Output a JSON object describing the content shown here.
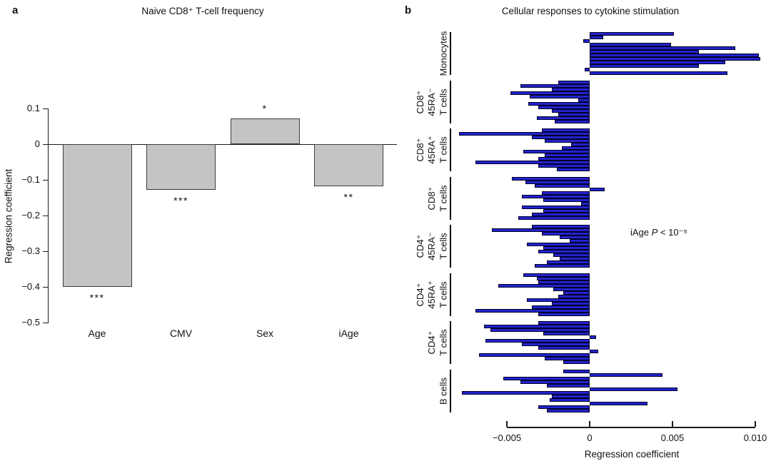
{
  "figure": {
    "panel_a_label": "a",
    "panel_b_label": "b"
  },
  "chart_data": [
    {
      "id": "panel_a",
      "type": "bar",
      "title": "Naive CD8⁺ T-cell frequency",
      "ylabel": "Regression coefficient",
      "categories": [
        "Age",
        "CMV",
        "Sex",
        "iAge"
      ],
      "values": [
        -0.4,
        -0.128,
        0.072,
        -0.118
      ],
      "significance": [
        "***",
        "***",
        "*",
        "**"
      ],
      "ylim": [
        -0.5,
        0.1
      ],
      "yticks": [
        0.1,
        0,
        -0.1,
        -0.2,
        -0.3,
        -0.4,
        -0.5
      ],
      "ytick_labels": [
        "0.1",
        "0",
        "−0.1",
        "−0.2",
        "−0.3",
        "−0.4",
        "−0.5"
      ],
      "grid": "off",
      "bar_color": "#c4c4c4",
      "bar_border": "#3d3d3d"
    },
    {
      "id": "panel_b",
      "type": "bar-horizontal",
      "title": "Cellular responses to cytokine stimulation",
      "xlabel": "Regression coefficient",
      "xlim": [
        -0.008,
        0.0105
      ],
      "xticks": [
        -0.005,
        0,
        0.005,
        0.01
      ],
      "xtick_labels": [
        "−0.005",
        "0",
        "0.005",
        "0.010"
      ],
      "grid": "off",
      "bar_color": "#2323cc",
      "bar_border": "#000028",
      "annotation": {
        "prefix": "iAge ",
        "p": "P",
        "suffix": " < 10⁻⁵"
      },
      "groups": [
        {
          "label_lines": [
            "Monocytes"
          ],
          "values": [
            0.0051,
            0.0008,
            -0.0004,
            0.0049,
            0.0088,
            0.0066,
            0.0102,
            0.0103,
            0.0082,
            0.0066,
            -0.0003,
            0.0083
          ]
        },
        {
          "label_lines": [
            "CD8⁺",
            "45RA⁻",
            "T cells"
          ],
          "values": [
            -0.0019,
            -0.0042,
            -0.0023,
            -0.0048,
            -0.0036,
            -0.0007,
            -0.0037,
            -0.0031,
            -0.0023,
            -0.0019,
            -0.0032,
            -0.0021
          ]
        },
        {
          "label_lines": [
            "CD8⁺",
            "45RA⁺",
            "T cells"
          ],
          "values": [
            -0.0029,
            -0.0079,
            -0.0035,
            -0.0027,
            -0.0011,
            -0.0017,
            -0.004,
            -0.0027,
            -0.0031,
            -0.0069,
            -0.0031,
            -0.002
          ]
        },
        {
          "label_lines": [
            "CD8⁺",
            "T cells"
          ],
          "values": [
            -0.0047,
            -0.0039,
            -0.0033,
            0.0009,
            -0.0029,
            -0.0041,
            -0.0028,
            -0.0005,
            -0.0041,
            -0.0028,
            -0.0035,
            -0.0043
          ]
        },
        {
          "label_lines": [
            "CD4⁺",
            "45RA⁻",
            "T cells"
          ],
          "values": [
            -0.0035,
            -0.0059,
            -0.0029,
            -0.0018,
            -0.0012,
            -0.0038,
            -0.0028,
            -0.0031,
            -0.0022,
            -0.0018,
            -0.0026,
            -0.0033
          ]
        },
        {
          "label_lines": [
            "CD4⁺",
            "45RA⁺",
            "T cells"
          ],
          "values": [
            -0.004,
            -0.0032,
            -0.0031,
            -0.0055,
            -0.0022,
            -0.0016,
            -0.0019,
            -0.0038,
            -0.0023,
            -0.0035,
            -0.0069,
            -0.0031
          ]
        },
        {
          "label_lines": [
            "CD4⁺",
            "T cells"
          ],
          "values": [
            -0.0031,
            -0.0064,
            -0.006,
            -0.0028,
            0.0004,
            -0.0063,
            -0.0041,
            -0.0031,
            0.0005,
            -0.0067,
            -0.0027,
            -0.0016
          ]
        },
        {
          "label_lines": [
            "B cells"
          ],
          "values": [
            -0.0016,
            0.0044,
            -0.0052,
            -0.0042,
            -0.0026,
            0.0053,
            -0.0077,
            -0.0023,
            -0.0024,
            0.0035,
            -0.0031,
            -0.0026
          ]
        }
      ]
    }
  ]
}
